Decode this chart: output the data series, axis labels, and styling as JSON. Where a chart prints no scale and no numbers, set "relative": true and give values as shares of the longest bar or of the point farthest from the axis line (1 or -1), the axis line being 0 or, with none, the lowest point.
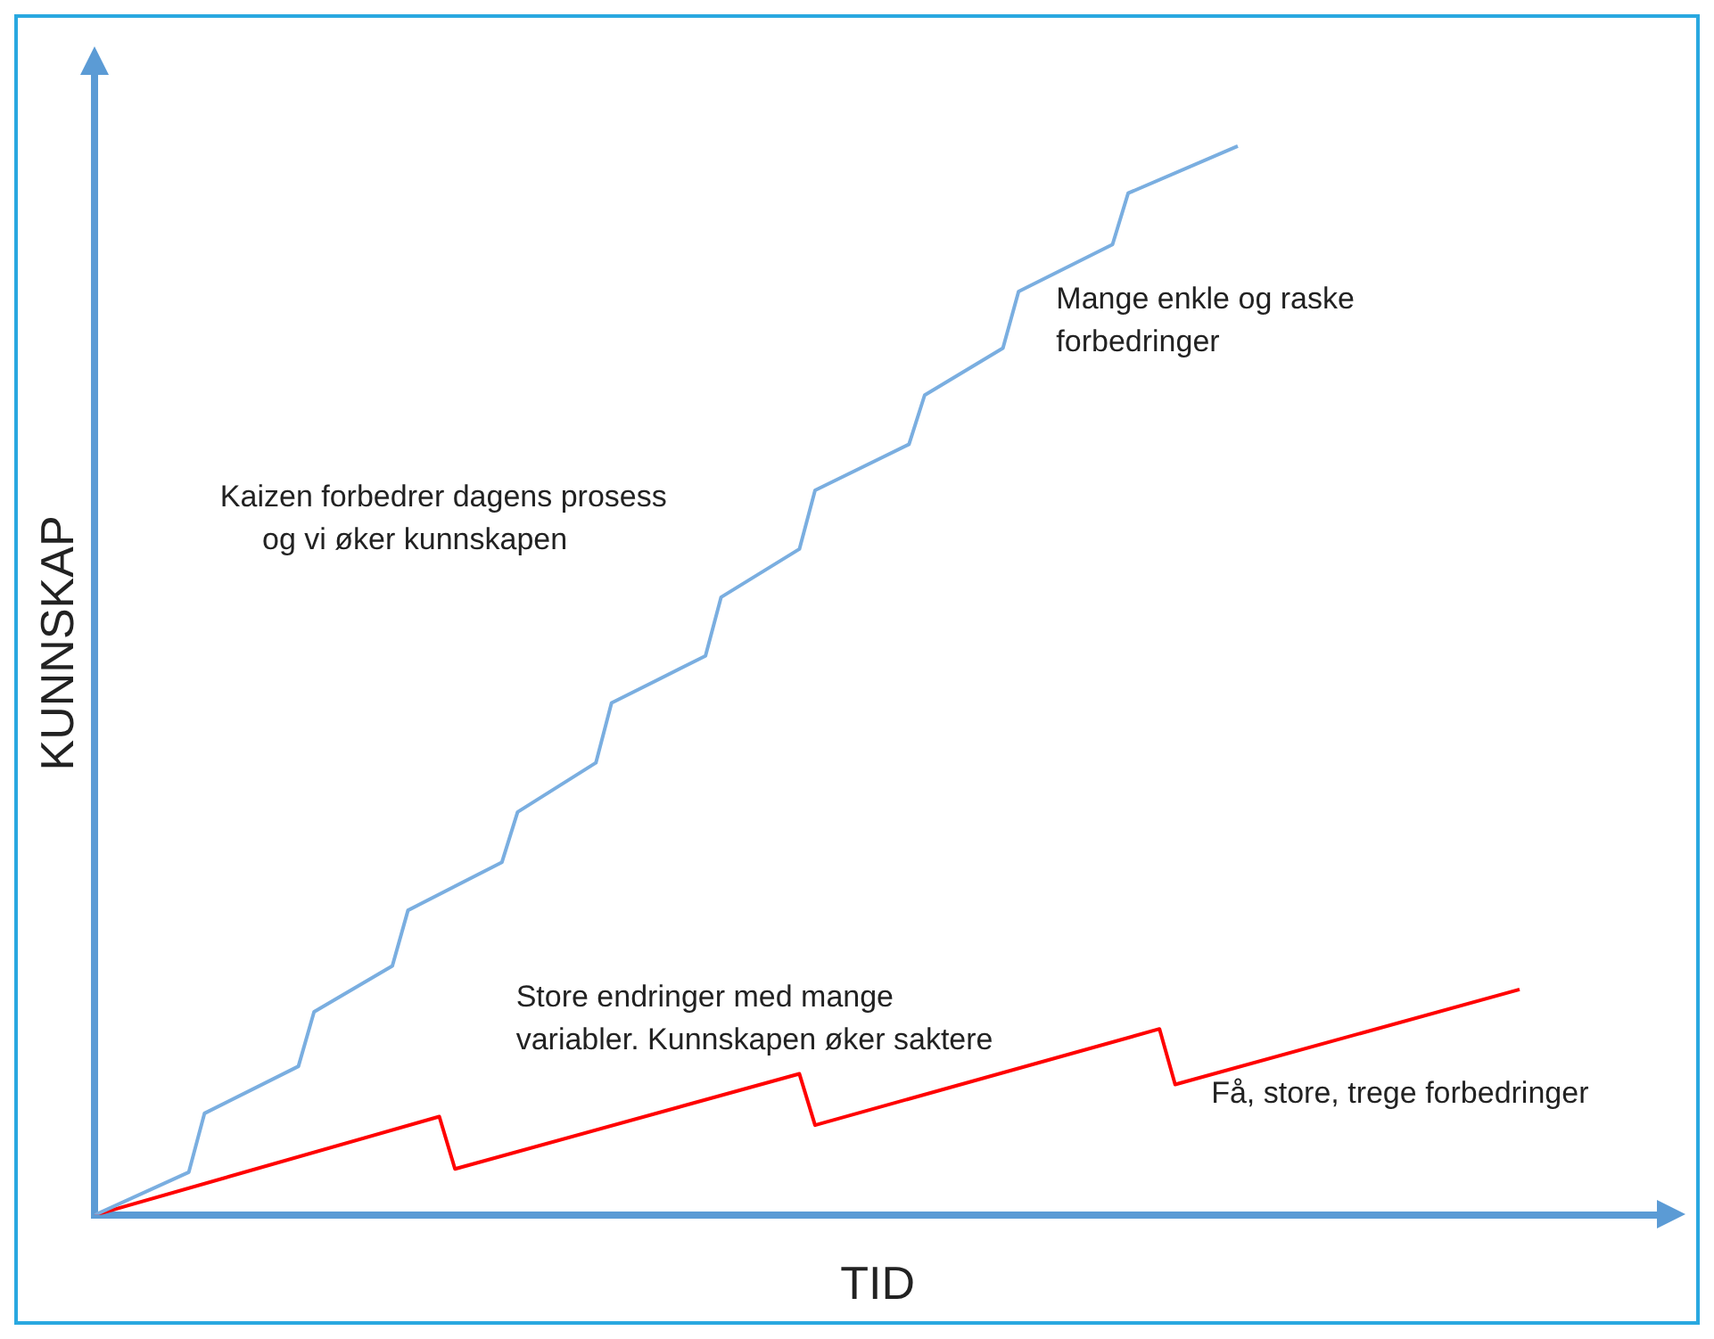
{
  "chart_data": {
    "type": "line",
    "relative": true,
    "xlabel": "TID",
    "ylabel": "KUNNSKAP",
    "grid": false,
    "legend": false,
    "marker": "none",
    "line_style": "solid",
    "categories": [
      null,
      null,
      null,
      null,
      null,
      null,
      null,
      null,
      null,
      null,
      null,
      null,
      null,
      null,
      null,
      null,
      null,
      null,
      null,
      null,
      null,
      null,
      null,
      null,
      null,
      null,
      null,
      null,
      null,
      null,
      null,
      null,
      null,
      null,
      null,
      null,
      null,
      null,
      null,
      null,
      null,
      null,
      null,
      null,
      null,
      null,
      null,
      null,
      null,
      null,
      null,
      null,
      null,
      null,
      null,
      null,
      null,
      null,
      null,
      null,
      null,
      null,
      null,
      null,
      null,
      null,
      null,
      null,
      null,
      null,
      null,
      null,
      null,
      null,
      null,
      null,
      null,
      null,
      null,
      null,
      null,
      null,
      null,
      null,
      null,
      null,
      null,
      null,
      null,
      null,
      null,
      null,
      null,
      null,
      null,
      null,
      null,
      null,
      null,
      null,
      null
    ],
    "series": [
      {
        "color": "#7aaee0",
        "values": [
          0,
          null,
          null,
          null,
          null,
          null,
          0.04,
          0.095,
          null,
          null,
          null,
          null,
          null,
          0.139,
          0.19,
          null,
          null,
          null,
          null,
          0.233,
          0.285,
          null,
          null,
          null,
          null,
          null,
          0.33,
          0.377,
          null,
          null,
          null,
          null,
          0.423,
          0.479,
          null,
          null,
          null,
          null,
          null,
          0.523,
          0.578,
          null,
          null,
          null,
          null,
          0.623,
          0.678,
          null,
          null,
          null,
          null,
          null,
          0.721,
          0.767,
          null,
          null,
          null,
          null,
          0.811,
          0.864,
          null,
          null,
          null,
          null,
          null,
          0.908,
          0.956,
          null,
          null,
          null,
          null,
          null,
          null,
          1,
          null,
          null,
          null,
          null,
          null,
          null,
          null,
          null,
          null,
          null,
          null,
          null,
          null,
          null,
          null,
          null,
          null,
          null,
          null,
          null,
          null,
          null,
          null,
          null,
          null,
          null,
          null
        ]
      },
      {
        "color": "#ff0000",
        "values": [
          0,
          null,
          null,
          null,
          null,
          null,
          null,
          null,
          null,
          null,
          null,
          null,
          null,
          null,
          null,
          null,
          null,
          null,
          null,
          null,
          null,
          null,
          0.092,
          0.043,
          null,
          null,
          null,
          null,
          null,
          null,
          null,
          null,
          null,
          null,
          null,
          null,
          null,
          null,
          null,
          null,
          null,
          null,
          null,
          null,
          null,
          0.132,
          0.084,
          null,
          null,
          null,
          null,
          null,
          null,
          null,
          null,
          null,
          null,
          null,
          null,
          null,
          null,
          null,
          null,
          null,
          null,
          null,
          null,
          null,
          0.174,
          0.122,
          null,
          null,
          null,
          null,
          null,
          null,
          null,
          null,
          null,
          null,
          null,
          null,
          null,
          null,
          null,
          null,
          null,
          null,
          null,
          null,
          null,
          0.211,
          null,
          null,
          null,
          null,
          null,
          null,
          null,
          null,
          null
        ]
      }
    ],
    "annotations": [
      "Mange enkle og raske\nforbedringer",
      "Kaizen forbedrer dagens prosess\n     og vi øker kunnskapen",
      "Store endringer med mange\nvariabler. Kunnskapen øker saktere",
      "Få, store, trege forbedringer"
    ]
  }
}
